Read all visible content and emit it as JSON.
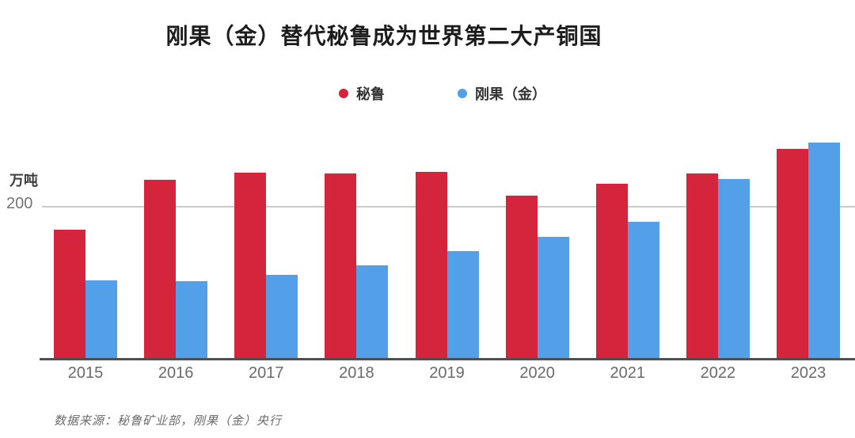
{
  "title": "刚果（金）替代秘鲁成为世界第二大产铜国",
  "y_axis": {
    "unit_label": "万吨",
    "tick_label": "200",
    "tick_value": 200
  },
  "source": "数据来源：秘鲁矿业部，刚果（金）央行",
  "colors": {
    "peru_red": "#D5253C",
    "congo_blue": "#54A0E8",
    "gridline": "#cbcbcb",
    "axis_line": "#4f4f4f"
  },
  "chart_data": {
    "type": "bar",
    "title": "刚果（金）替代秘鲁成为世界第二大产铜国",
    "categories": [
      "2015",
      "2016",
      "2017",
      "2018",
      "2019",
      "2020",
      "2021",
      "2022",
      "2023"
    ],
    "series": [
      {
        "name": "秘鲁",
        "color": "#D5253C",
        "values": [
          170,
          235,
          245,
          244,
          246,
          215,
          230,
          244,
          276
        ]
      },
      {
        "name": "刚果（金）",
        "color": "#54A0E8",
        "values": [
          103,
          102,
          110,
          123,
          142,
          160,
          180,
          236,
          284
        ]
      }
    ],
    "xlabel": "",
    "ylabel": "万吨",
    "yticks": [
      200
    ],
    "ylim": [
      0,
      300
    ],
    "grid": "single horizontal gridline at 200",
    "legend_position": "top-center"
  }
}
